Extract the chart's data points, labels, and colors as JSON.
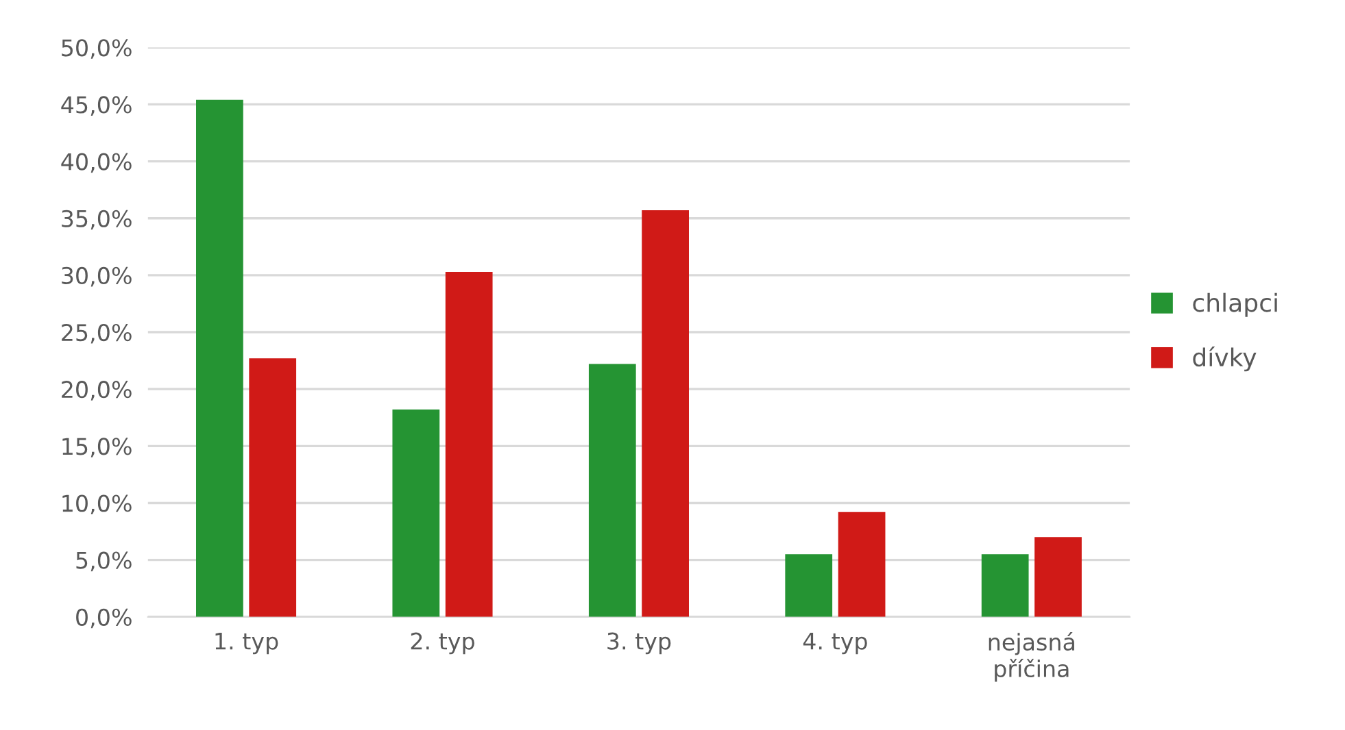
{
  "chart_data": {
    "type": "bar",
    "categories": [
      "1. typ",
      "2. typ",
      "3. typ",
      "4. typ",
      "nejasná\npříčina"
    ],
    "series": [
      {
        "name": "chlapci",
        "color": "#259433",
        "values": [
          45.4,
          18.2,
          22.2,
          5.5,
          5.5
        ]
      },
      {
        "name": "dívky",
        "color": "#d01a17",
        "values": [
          22.7,
          30.3,
          35.7,
          9.2,
          7.0
        ]
      }
    ],
    "ylim": [
      0,
      50
    ],
    "yticks": [
      {
        "value": 0,
        "label": "0,0%"
      },
      {
        "value": 5,
        "label": "5,0%"
      },
      {
        "value": 10,
        "label": "10,0%"
      },
      {
        "value": 15,
        "label": "15,0%"
      },
      {
        "value": 20,
        "label": "20,0%"
      },
      {
        "value": 25,
        "label": "25,0%"
      },
      {
        "value": 30,
        "label": "30,0%"
      },
      {
        "value": 35,
        "label": "35,0%"
      },
      {
        "value": 40,
        "label": "40,0%"
      },
      {
        "value": 45,
        "label": "45,0%"
      },
      {
        "value": 50,
        "label": "50,0%"
      }
    ],
    "grid": "y",
    "legend": "right"
  }
}
